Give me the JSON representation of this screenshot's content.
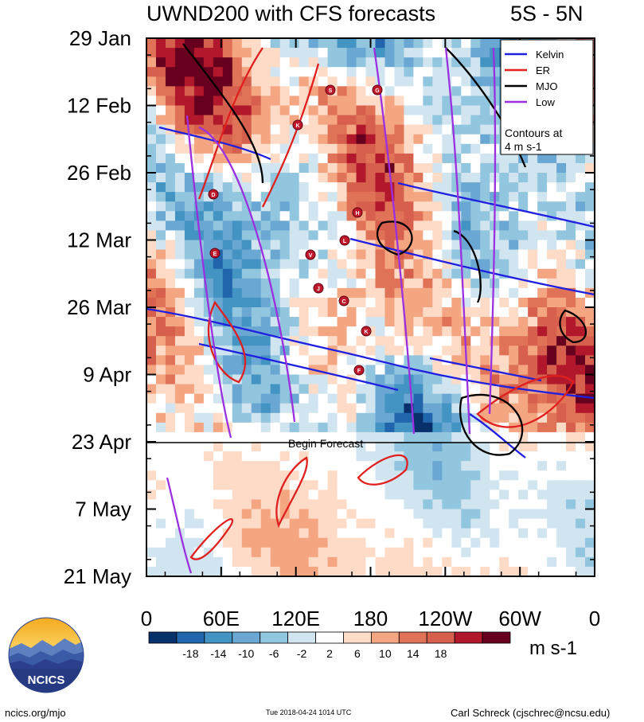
{
  "header": {
    "title": "UWND200 with CFS forecasts",
    "region": "5S - 5N"
  },
  "chart_data": {
    "type": "heatmap",
    "title": "UWND200 with CFS forecasts",
    "subtitle": "5S - 5N",
    "y_ticks": [
      "29 Jan",
      "12 Feb",
      "26 Feb",
      "12 Mar",
      "26 Mar",
      "9 Apr",
      "23 Apr",
      "7 May",
      "21 May"
    ],
    "x_ticks": [
      "0",
      "60E",
      "120E",
      "180",
      "120W",
      "60W",
      "0"
    ],
    "ylim": [
      "29 Jan",
      "21 May"
    ],
    "xlim": [
      "0",
      "0"
    ],
    "colorbar": {
      "ticks": [
        -18,
        -14,
        -10,
        -6,
        -2,
        2,
        6,
        10,
        14,
        18
      ],
      "unit": "m s-1",
      "colors": [
        "#08306b",
        "#2166ac",
        "#4393c3",
        "#6aa7d3",
        "#92c5de",
        "#d1e5f0",
        "#ffffff",
        "#fddbc7",
        "#f4a582",
        "#e07258",
        "#d6604d",
        "#b2182b",
        "#67001f"
      ]
    },
    "legend": {
      "placement": "top-right",
      "entries": [
        {
          "name": "Kelvin",
          "color": "#1f1fe0"
        },
        {
          "name": "ER",
          "color": "#e01f1f"
        },
        {
          "name": "MJO",
          "color": "#000000"
        },
        {
          "name": "Low",
          "color": "#9b30e0"
        }
      ],
      "note": "Contours at\n4 m s-1"
    },
    "annotation": "Begin Forecast",
    "forecast_start": "23 Apr",
    "cyclone_markers": [
      "S",
      "G",
      "K",
      "D",
      "H",
      "L",
      "E",
      "V",
      "J",
      "C",
      "K",
      "F"
    ]
  },
  "footer": {
    "left": "ncics.org/mjo",
    "center": "Tue 2018-04-24 1014 UTC",
    "right": "Carl Schreck (cjschrec@ncsu.edu)"
  },
  "logo": {
    "text": "NCICS"
  }
}
